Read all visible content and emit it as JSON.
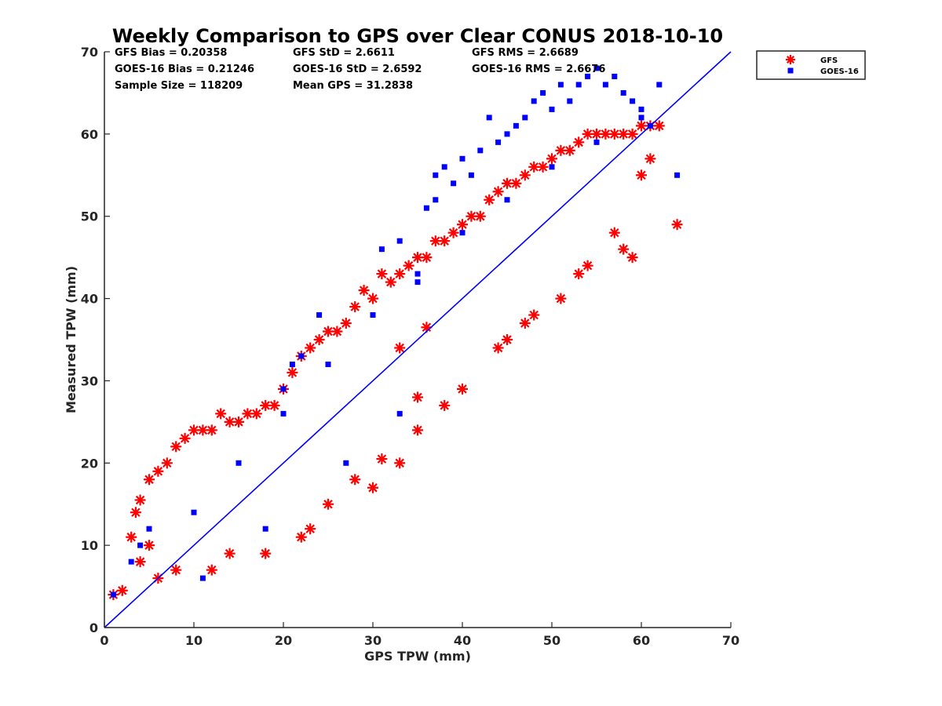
{
  "chart_data": {
    "type": "scatter",
    "title": "Weekly Comparison to GPS over Clear CONUS 2018-10-10",
    "xlabel": "GPS TPW (mm)",
    "ylabel": "Measured TPW (mm)",
    "xlim": [
      0,
      70
    ],
    "ylim": [
      0,
      70
    ],
    "xticks": [
      "0",
      "10",
      "20",
      "30",
      "40",
      "50",
      "60",
      "70"
    ],
    "yticks": [
      "0",
      "10",
      "20",
      "30",
      "40",
      "50",
      "60",
      "70"
    ],
    "grid": false,
    "legend_position": "outside-top-right",
    "reference_line": {
      "x": [
        0,
        70
      ],
      "y": [
        0,
        70
      ],
      "color": "#0000ff"
    },
    "stats": [
      "GFS Bias = 0.20358",
      "GFS StD = 2.6611",
      "GFS RMS = 2.6689",
      "GOES-16 Bias = 0.21246",
      "GOES-16 StD = 2.6592",
      "GOES-16 RMS = 2.6676",
      "Sample Size = 118209",
      "Mean GPS = 31.2838"
    ],
    "series": [
      {
        "name": "GFS",
        "marker": "asterisk",
        "color": "#ff0000",
        "x": [
          1,
          2,
          3,
          4,
          3.5,
          5,
          6,
          7,
          8,
          9,
          10,
          11,
          12,
          13,
          14,
          15,
          16,
          17,
          18,
          19,
          20,
          21,
          22,
          23,
          24,
          25,
          26,
          27,
          28,
          29,
          30,
          31,
          32,
          33,
          34,
          35,
          36,
          37,
          38,
          39,
          40,
          41,
          42,
          43,
          44,
          45,
          46,
          47,
          48,
          49,
          50,
          51,
          52,
          53,
          54,
          55,
          56,
          57,
          58,
          59,
          60,
          61,
          62,
          64,
          4,
          5,
          6,
          8,
          12,
          14,
          18,
          22,
          23,
          30,
          33,
          35,
          38,
          40,
          44,
          47,
          51,
          54,
          57,
          60,
          61,
          25,
          35,
          45,
          48,
          53,
          58,
          59,
          36,
          31,
          28,
          33
        ],
        "y": [
          4,
          4.5,
          11,
          15.5,
          14,
          18,
          19,
          20,
          22,
          23,
          24,
          24,
          24,
          26,
          25,
          25,
          26,
          26,
          27,
          27,
          29,
          31,
          33,
          34,
          35,
          36,
          36,
          37,
          39,
          41,
          40,
          43,
          42,
          43,
          44,
          45,
          45,
          47,
          47,
          48,
          49,
          50,
          50,
          52,
          53,
          54,
          54,
          55,
          56,
          56,
          57,
          58,
          58,
          59,
          60,
          60,
          60,
          60,
          60,
          60,
          61,
          61,
          61,
          49,
          8,
          10,
          6,
          7,
          7,
          9,
          9,
          11,
          12,
          17,
          20,
          24,
          27,
          29,
          34,
          37,
          40,
          44,
          48,
          55,
          57,
          15,
          28,
          35,
          38,
          43,
          46,
          45,
          36.5,
          20.5,
          18,
          34
        ]
      },
      {
        "name": "GOES-16",
        "marker": "square",
        "color": "#0000ff",
        "x": [
          1,
          3,
          4,
          5,
          10,
          15,
          20,
          25,
          30,
          35,
          40,
          45,
          50,
          55,
          60,
          62,
          64,
          20,
          21,
          22,
          24,
          31,
          33,
          35,
          36,
          37,
          38,
          39,
          40,
          41,
          42,
          44,
          45,
          46,
          47,
          48,
          49,
          50,
          51,
          52,
          53,
          54,
          55,
          56,
          57,
          58,
          59,
          60,
          61,
          43,
          37,
          11,
          18,
          27,
          33
        ],
        "y": [
          4,
          8,
          10,
          12,
          14,
          20,
          26,
          32,
          38,
          42,
          48,
          52,
          56,
          59,
          63,
          66,
          55,
          29,
          32,
          33,
          38,
          46,
          47,
          43,
          51,
          52,
          56,
          54,
          57,
          55,
          58,
          59,
          60,
          61,
          62,
          64,
          65,
          63,
          66,
          64,
          66,
          67,
          68,
          66,
          67,
          65,
          64,
          62,
          61,
          62,
          55,
          6,
          12,
          20,
          26
        ]
      }
    ],
    "legend": [
      {
        "label": "GFS",
        "marker": "asterisk",
        "color": "#ff0000"
      },
      {
        "label": "GOES-16",
        "marker": "square",
        "color": "#0000ff"
      }
    ]
  }
}
